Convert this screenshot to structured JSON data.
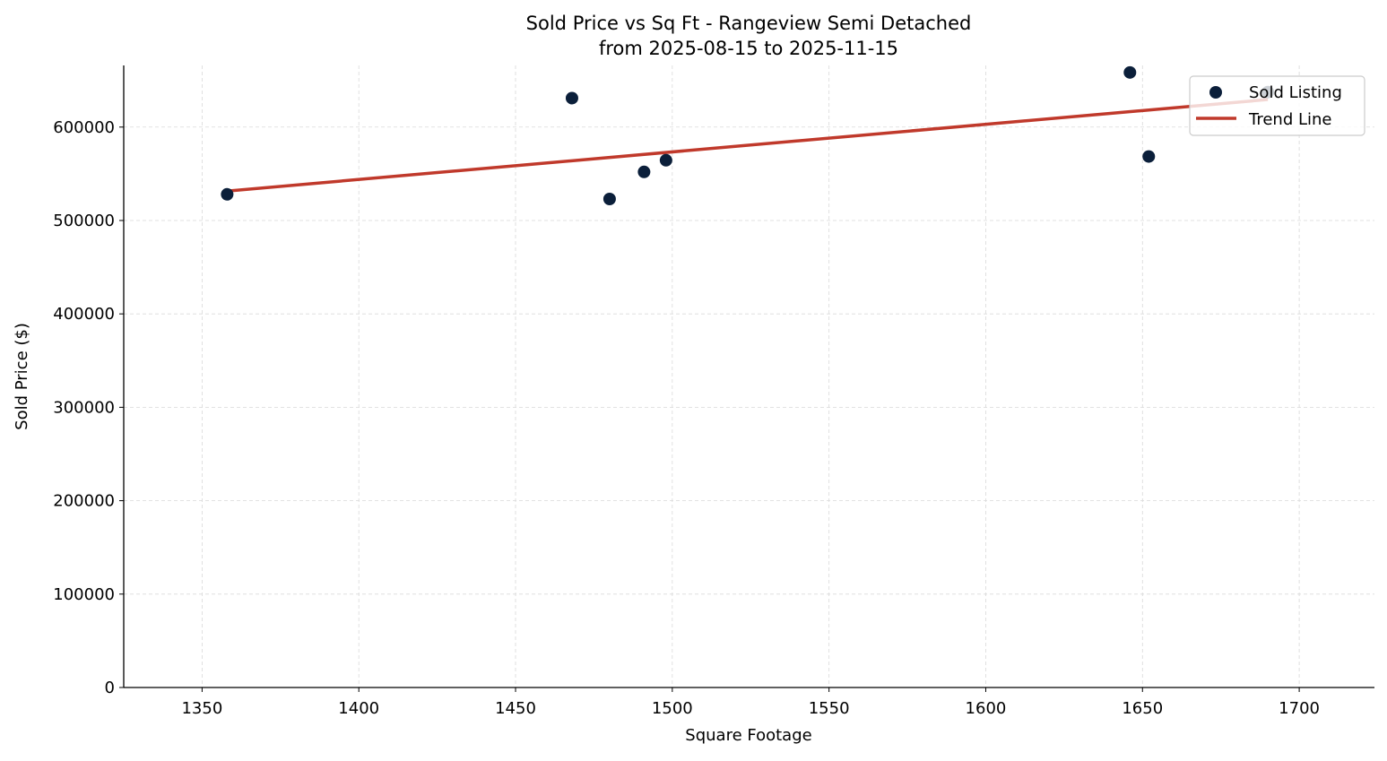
{
  "chart_data": {
    "type": "scatter",
    "title": "Sold Price vs Sq Ft - Rangeview Semi Detached",
    "subtitle": "from 2025-08-15 to 2025-11-15",
    "xlabel": "Square Footage",
    "ylabel": "Sold Price ($)",
    "xlim": [
      1325,
      1724
    ],
    "ylim": [
      0,
      666000
    ],
    "xticks": [
      1350,
      1400,
      1450,
      1500,
      1550,
      1600,
      1650,
      1700
    ],
    "yticks": [
      0,
      100000,
      200000,
      300000,
      400000,
      500000,
      600000
    ],
    "grid": true,
    "legend_position": "top-right",
    "series": [
      {
        "name": "Sold Listing",
        "type": "scatter",
        "color": "#0b1f3a",
        "points": [
          {
            "x": 1358,
            "y": 528000
          },
          {
            "x": 1468,
            "y": 631000
          },
          {
            "x": 1480,
            "y": 523000
          },
          {
            "x": 1491,
            "y": 552000
          },
          {
            "x": 1498,
            "y": 564500
          },
          {
            "x": 1646,
            "y": 658500
          },
          {
            "x": 1652,
            "y": 568500
          },
          {
            "x": 1690,
            "y": 637500
          }
        ]
      },
      {
        "name": "Trend Line",
        "type": "line",
        "color": "#c0392b",
        "points": [
          {
            "x": 1358,
            "y": 531500
          },
          {
            "x": 1690,
            "y": 629500
          }
        ]
      }
    ]
  }
}
